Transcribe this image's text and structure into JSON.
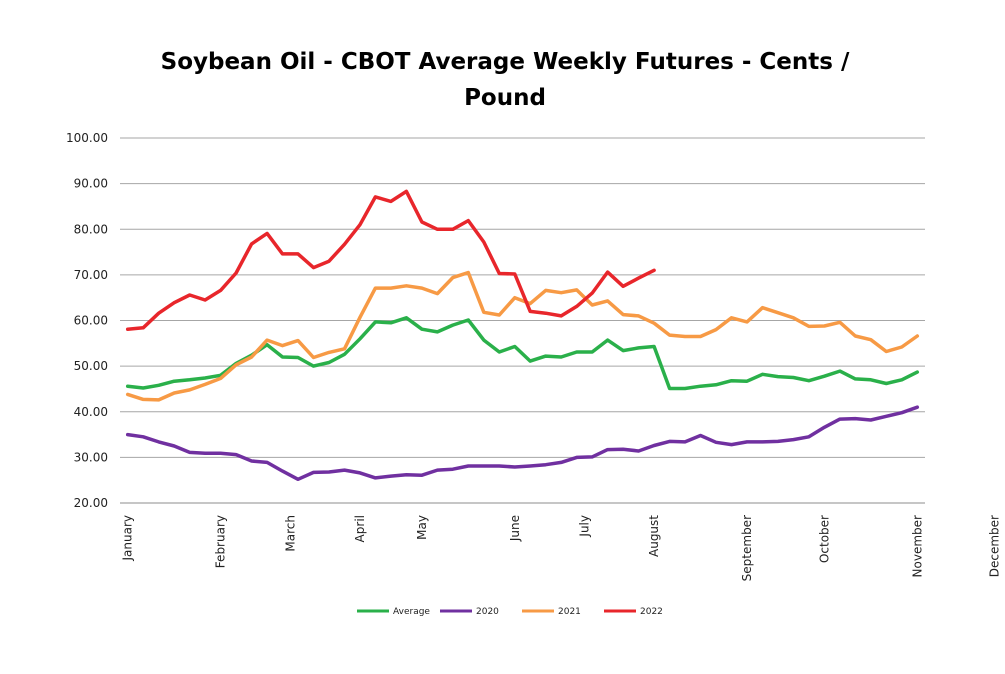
{
  "chart_data": {
    "type": "line",
    "title": "Soybean Oil - CBOT Average Weekly Futures - Cents / Pound",
    "xlabel": "",
    "ylabel": "",
    "ylim": [
      20,
      100
    ],
    "y_ticks": [
      "20.00",
      "30.00",
      "40.00",
      "50.00",
      "60.00",
      "70.00",
      "80.00",
      "90.00",
      "100.00"
    ],
    "x_tick_labels": [
      "January",
      "February",
      "March",
      "April",
      "May",
      "June",
      "July",
      "August",
      "September",
      "October",
      "November",
      "December"
    ],
    "x_tick_weeks": [
      1,
      7,
      11.5,
      16,
      20,
      26,
      30.5,
      35,
      41,
      46,
      52,
      57
    ],
    "grid": true,
    "legend_position": "bottom",
    "series": [
      {
        "name": "Average",
        "color": "#2ab04a",
        "values": [
          45.6,
          45.2,
          45.8,
          46.7,
          47.0,
          47.4,
          48.0,
          50.6,
          52.4,
          54.7,
          52.0,
          51.9,
          50.0,
          50.8,
          52.6,
          56.0,
          59.7,
          59.5,
          60.6,
          58.1,
          57.5,
          59.0,
          60.1,
          55.7,
          53.1,
          54.3,
          51.1,
          52.2,
          52.0,
          53.1,
          53.1,
          55.7,
          53.4,
          54.0,
          54.3,
          45.1,
          45.1,
          45.6,
          45.9,
          46.8,
          46.7,
          48.2,
          47.7,
          47.5,
          46.8,
          47.8,
          48.9,
          47.2,
          47.0,
          46.2,
          47.0,
          48.7
        ]
      },
      {
        "name": "2020",
        "color": "#7030a0",
        "values": [
          35.0,
          34.5,
          33.4,
          32.5,
          31.1,
          30.9,
          30.9,
          30.6,
          29.2,
          28.9,
          27.0,
          25.2,
          26.7,
          26.8,
          27.2,
          26.6,
          25.5,
          25.9,
          26.2,
          26.1,
          27.2,
          27.4,
          28.1,
          28.1,
          28.1,
          27.9,
          28.1,
          28.4,
          28.9,
          30.0,
          30.1,
          31.7,
          31.8,
          31.4,
          32.6,
          33.5,
          33.4,
          34.8,
          33.3,
          32.8,
          33.4,
          33.4,
          33.5,
          33.9,
          34.5,
          36.6,
          38.4,
          38.5,
          38.2,
          39.0,
          39.8,
          41.0
        ]
      },
      {
        "name": "2021",
        "color": "#f79a45",
        "values": [
          43.8,
          42.7,
          42.6,
          44.1,
          44.8,
          46.0,
          47.3,
          50.3,
          52.0,
          55.7,
          54.5,
          55.6,
          51.9,
          53.0,
          53.8,
          60.7,
          67.1,
          67.1,
          67.6,
          67.1,
          65.9,
          69.4,
          70.5,
          61.8,
          61.2,
          65.0,
          63.7,
          66.6,
          66.1,
          66.7,
          63.4,
          64.3,
          61.3,
          61.0,
          59.4,
          56.8,
          56.5,
          56.5,
          58.0,
          60.6,
          59.7,
          62.8,
          61.7,
          60.6,
          58.7,
          58.8,
          59.6,
          56.6,
          55.8,
          53.2,
          54.2,
          56.6
        ]
      },
      {
        "name": "2022",
        "color": "#e8262b",
        "values": [
          58.1,
          58.4,
          61.6,
          63.9,
          65.6,
          64.5,
          66.6,
          70.4,
          76.8,
          79.1,
          74.6,
          74.6,
          71.6,
          73.0,
          76.7,
          81.0,
          87.1,
          86.1,
          88.3,
          81.6,
          80.0,
          80.0,
          81.9,
          77.2,
          70.3,
          70.2,
          62.0,
          61.6,
          61.0,
          63.1,
          66.0,
          70.6,
          67.5,
          69.3,
          71.0
        ]
      }
    ]
  }
}
